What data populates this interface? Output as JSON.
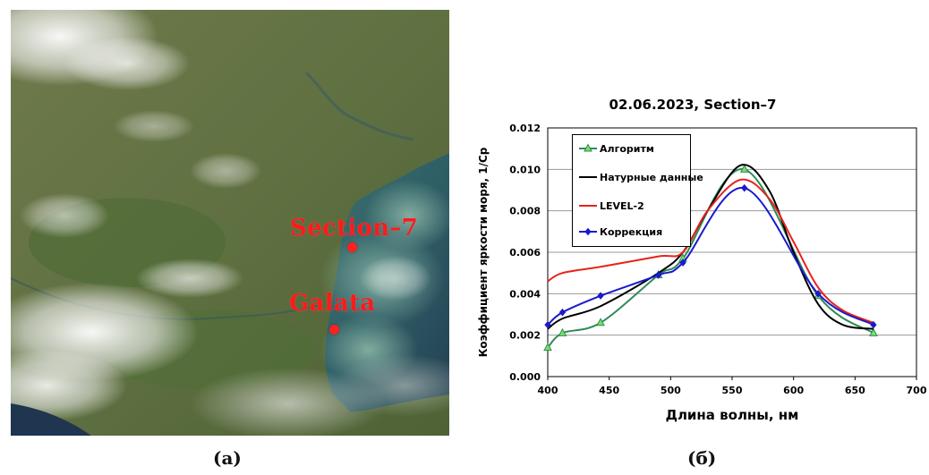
{
  "panel_a": {
    "caption": "(a)",
    "sites": [
      {
        "label": "Section–7"
      },
      {
        "label": "Galata"
      }
    ]
  },
  "panel_b": {
    "caption": "(б)"
  },
  "chart_data": {
    "type": "line",
    "title": "02.06.2023, Section–7",
    "xlabel": "Длина волны, нм",
    "ylabel": "Коэффициент яркости моря, 1/Ср",
    "xlim": [
      400,
      700
    ],
    "ylim": [
      0,
      0.012
    ],
    "x_ticks": [
      "400",
      "450",
      "500",
      "550",
      "600",
      "650",
      "700"
    ],
    "y_ticks": [
      "0.000",
      "0.002",
      "0.004",
      "0.006",
      "0.008",
      "0.010",
      "0.012"
    ],
    "grid": "horizontal",
    "legend_position": "top-left",
    "series": [
      {
        "name": "Алгоритм",
        "color": "#2e8b57",
        "marker": "triangle",
        "marker_fill": "#7ddf64",
        "x": [
          400,
          412,
          443,
          490,
          510,
          560,
          620,
          665
        ],
        "y": [
          0.0014,
          0.0021,
          0.0026,
          0.0049,
          0.0057,
          0.01,
          0.0039,
          0.0021
        ]
      },
      {
        "name": "Натурные данные",
        "color": "#000000",
        "marker": "none",
        "x": [
          400,
          412,
          443,
          490,
          510,
          530,
          557,
          580,
          600,
          620,
          640,
          665
        ],
        "y": [
          0.0023,
          0.0028,
          0.0034,
          0.005,
          0.006,
          0.008,
          0.0102,
          0.009,
          0.006,
          0.0035,
          0.0025,
          0.0023
        ]
      },
      {
        "name": "LEVEL-2",
        "color": "#e8221b",
        "marker": "none",
        "x": [
          400,
          412,
          443,
          490,
          510,
          530,
          557,
          580,
          600,
          620,
          640,
          665
        ],
        "y": [
          0.0046,
          0.005,
          0.0053,
          0.0058,
          0.006,
          0.008,
          0.0095,
          0.0086,
          0.0065,
          0.0043,
          0.0032,
          0.0026
        ]
      },
      {
        "name": "Коррекция",
        "color": "#1a1acc",
        "marker": "diamond",
        "marker_fill": "#1a1acc",
        "x": [
          400,
          412,
          443,
          490,
          510,
          560,
          620,
          665
        ],
        "y": [
          0.0025,
          0.0031,
          0.0039,
          0.0049,
          0.0055,
          0.0091,
          0.004,
          0.0025
        ]
      }
    ]
  }
}
